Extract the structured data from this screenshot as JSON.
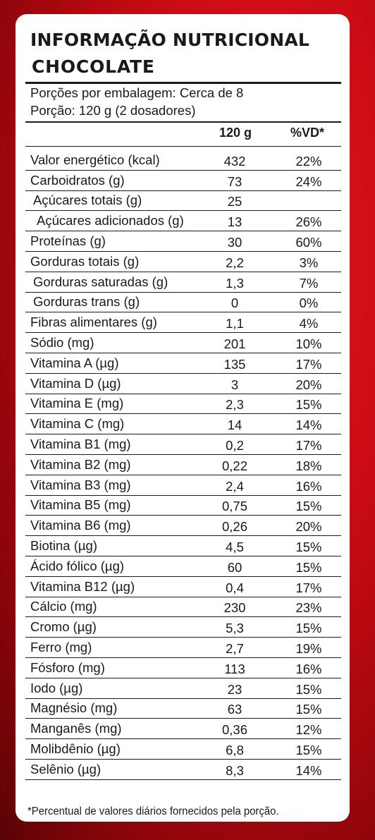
{
  "label": {
    "title": "INFORMAÇÃO NUTRICIONAL",
    "subtitle": "CHOCOLATE",
    "servings_per_package": "Porções por embalagem: Cerca de 8",
    "serving_size": "Porção: 120 g (2 dosadores)",
    "col_amount": "120 g",
    "col_dv": "%VD*",
    "footnote": "*Percentual de valores diários fornecidos pela porção."
  },
  "nutrients": [
    {
      "name": "Valor energético (kcal)",
      "amount": "432",
      "dv": "22%",
      "indent": 0
    },
    {
      "name": "Carboidratos (g)",
      "amount": "73",
      "dv": "24%",
      "indent": 0
    },
    {
      "name": "Açúcares totais (g)",
      "amount": "25",
      "dv": "",
      "indent": 1
    },
    {
      "name": "Açúcares adicionados (g)",
      "amount": "13",
      "dv": "26%",
      "indent": 2
    },
    {
      "name": "Proteínas (g)",
      "amount": "30",
      "dv": "60%",
      "indent": 0
    },
    {
      "name": "Gorduras totais (g)",
      "amount": "2,2",
      "dv": "3%",
      "indent": 0
    },
    {
      "name": "Gorduras saturadas (g)",
      "amount": "1,3",
      "dv": "7%",
      "indent": 1
    },
    {
      "name": "Gorduras trans (g)",
      "amount": "0",
      "dv": "0%",
      "indent": 1
    },
    {
      "name": "Fibras alimentares (g)",
      "amount": "1,1",
      "dv": "4%",
      "indent": 0
    },
    {
      "name": "Sódio (mg)",
      "amount": "201",
      "dv": "10%",
      "indent": 0
    },
    {
      "name": "Vitamina A (µg)",
      "amount": "135",
      "dv": "17%",
      "indent": 0
    },
    {
      "name": "Vitamina D (µg)",
      "amount": "3",
      "dv": "20%",
      "indent": 0
    },
    {
      "name": "Vitamina E (mg)",
      "amount": "2,3",
      "dv": "15%",
      "indent": 0
    },
    {
      "name": "Vitamina C (mg)",
      "amount": "14",
      "dv": "14%",
      "indent": 0
    },
    {
      "name": "Vitamina B1 (mg)",
      "amount": "0,2",
      "dv": "17%",
      "indent": 0
    },
    {
      "name": "Vitamina B2 (mg)",
      "amount": "0,22",
      "dv": "18%",
      "indent": 0
    },
    {
      "name": "Vitamina B3 (mg)",
      "amount": "2,4",
      "dv": "16%",
      "indent": 0
    },
    {
      "name": "Vitamina B5 (mg)",
      "amount": "0,75",
      "dv": "15%",
      "indent": 0
    },
    {
      "name": "Vitamina B6 (mg)",
      "amount": "0,26",
      "dv": "20%",
      "indent": 0
    },
    {
      "name": "Biotina (µg)",
      "amount": "4,5",
      "dv": "15%",
      "indent": 0
    },
    {
      "name": "Ácido fólico (µg)",
      "amount": "60",
      "dv": "15%",
      "indent": 0
    },
    {
      "name": "Vitamina B12 (µg)",
      "amount": "0,4",
      "dv": "17%",
      "indent": 0
    },
    {
      "name": "Cálcio (mg)",
      "amount": "230",
      "dv": "23%",
      "indent": 0
    },
    {
      "name": "Cromo (µg)",
      "amount": "5,3",
      "dv": "15%",
      "indent": 0
    },
    {
      "name": "Ferro (mg)",
      "amount": "2,7",
      "dv": "19%",
      "indent": 0
    },
    {
      "name": "Fósforo (mg)",
      "amount": "113",
      "dv": "16%",
      "indent": 0
    },
    {
      "name": "Iodo (µg)",
      "amount": "23",
      "dv": "15%",
      "indent": 0
    },
    {
      "name": "Magnésio (mg)",
      "amount": "63",
      "dv": "15%",
      "indent": 0
    },
    {
      "name": "Manganês (mg)",
      "amount": "0,36",
      "dv": "12%",
      "indent": 0
    },
    {
      "name": "Molibdênio (µg)",
      "amount": "6,8",
      "dv": "15%",
      "indent": 0
    },
    {
      "name": "Selênio (µg)",
      "amount": "8,3",
      "dv": "14%",
      "indent": 0
    }
  ]
}
